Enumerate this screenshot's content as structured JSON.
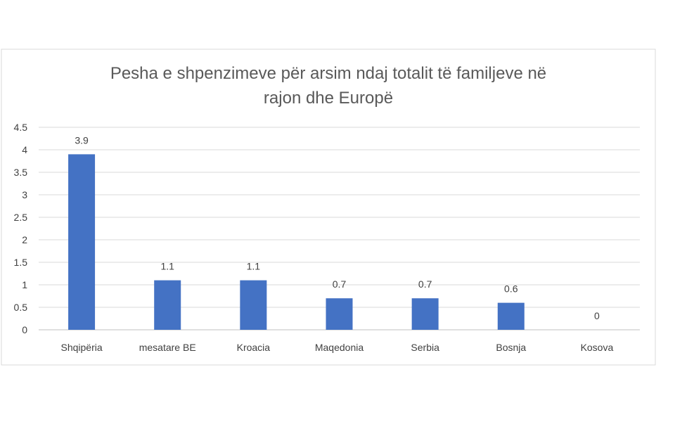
{
  "chart_data": {
    "type": "bar",
    "title": [
      "Pesha e shpenzimeve për arsim ndaj totalit të familjeve në",
      "rajon dhe Europë"
    ],
    "categories": [
      "Shqipëria",
      "mesatare BE",
      "Kroacia",
      "Maqedonia",
      "Serbia",
      "Bosnja",
      "Kosova"
    ],
    "values": [
      3.9,
      1.1,
      1.1,
      0.7,
      0.7,
      0.6,
      0
    ],
    "data_labels": [
      "3.9",
      "1.1",
      "1.1",
      "0.7",
      "0.7",
      "0.6",
      "0"
    ],
    "y_ticks": [
      "0",
      "0.5",
      "1",
      "1.5",
      "2",
      "2.5",
      "3",
      "3.5",
      "4",
      "4.5"
    ],
    "ylim": [
      0,
      4.5
    ],
    "grid": true,
    "legend": "none",
    "bar_color": "#4472C4"
  }
}
